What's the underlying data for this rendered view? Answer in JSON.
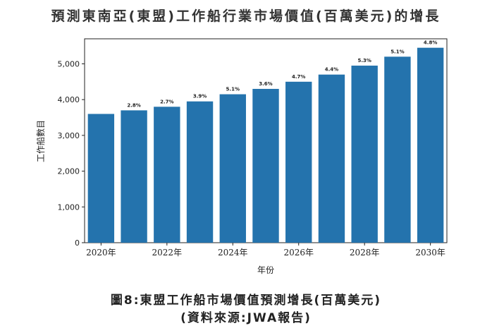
{
  "title": "預測東南亞(東盟)工作船行業市場價值(百萬美元)的增長",
  "caption": {
    "line1": "圖8:東盟工作船市場價值預測增長(百萬美元)",
    "line2": "(資料來源:JWA報告)"
  },
  "colors": {
    "bar": "#2473ad"
  },
  "chart_data": {
    "type": "bar",
    "title": "預測東南亞(東盟)工作船行業市場價值(百萬美元)的增長",
    "xlabel": "年份",
    "ylabel": "工作船數目",
    "categories": [
      "2020",
      "2021",
      "2022",
      "2023",
      "2024",
      "2025",
      "2026",
      "2027",
      "2028",
      "2029",
      "2030"
    ],
    "values": [
      3600,
      3700,
      3800,
      3950,
      4150,
      4300,
      4500,
      4700,
      4950,
      5200,
      5450
    ],
    "data_labels": [
      "",
      "2.8%",
      "2.7%",
      "3.9%",
      "5.1%",
      "3.6%",
      "4.7%",
      "4.4%",
      "5.3%",
      "5.1%",
      "4.8%"
    ],
    "xticks": [
      "2020年",
      "2022年",
      "2024年",
      "2026年",
      "2028年",
      "2030年"
    ],
    "xtick_index": [
      0,
      2,
      4,
      6,
      8,
      10
    ],
    "yticks": [
      "0",
      "1,000",
      "2,000",
      "3,000",
      "4,000",
      "5,000"
    ],
    "ytick_values": [
      0,
      1000,
      2000,
      3000,
      4000,
      5000
    ],
    "ylim": [
      0,
      5700
    ],
    "grid": false,
    "legend": "none"
  }
}
